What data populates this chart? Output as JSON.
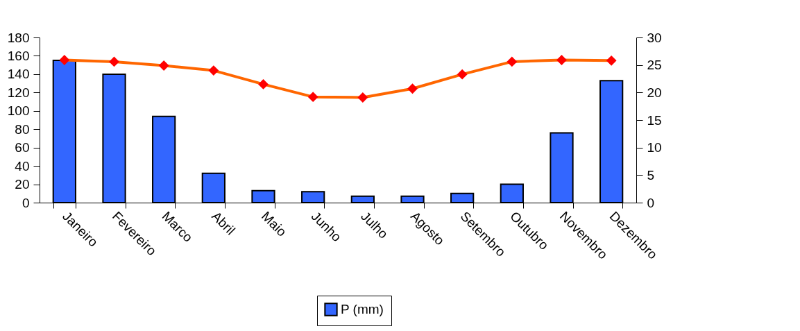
{
  "chart_data": {
    "type": "bar",
    "categories": [
      "Janeiro",
      "Fevereiro",
      "Marco",
      "Abril",
      "Maio",
      "Junho",
      "Julho",
      "Agosto",
      "Setembro",
      "Outubro",
      "Novembro",
      "Dezembro"
    ],
    "series": [
      {
        "name": "P (mm)",
        "color": "#3366ff",
        "values": [
          155,
          140,
          94,
          32,
          13,
          12,
          7,
          7,
          10,
          20,
          76,
          133
        ]
      },
      {
        "type": "line",
        "axis": "y2",
        "color": "#ff6600",
        "colors": [
          "#ff0000",
          "#ff0000",
          "#ff0000",
          "#ff0000",
          "#ff0000",
          "#ff0000",
          "#ff0000",
          "#ff0000",
          "#ff0000",
          "#ff0000",
          "#ff0000",
          "#ff0000"
        ],
        "values": [
          25.9,
          25.6,
          24.9,
          24.0,
          21.5,
          19.2,
          19.1,
          20.7,
          23.3,
          25.6,
          25.9,
          25.8
        ]
      }
    ],
    "ylim": [
      0,
      180
    ],
    "yticks": [
      0,
      20,
      40,
      60,
      80,
      100,
      120,
      140,
      160,
      180
    ],
    "y2lim": [
      0,
      30
    ],
    "y2ticks": [
      0,
      5,
      10,
      15,
      20,
      25,
      30
    ],
    "grid": false,
    "legend": "bottom",
    "marker": "diamond",
    "line_style": "solid"
  }
}
